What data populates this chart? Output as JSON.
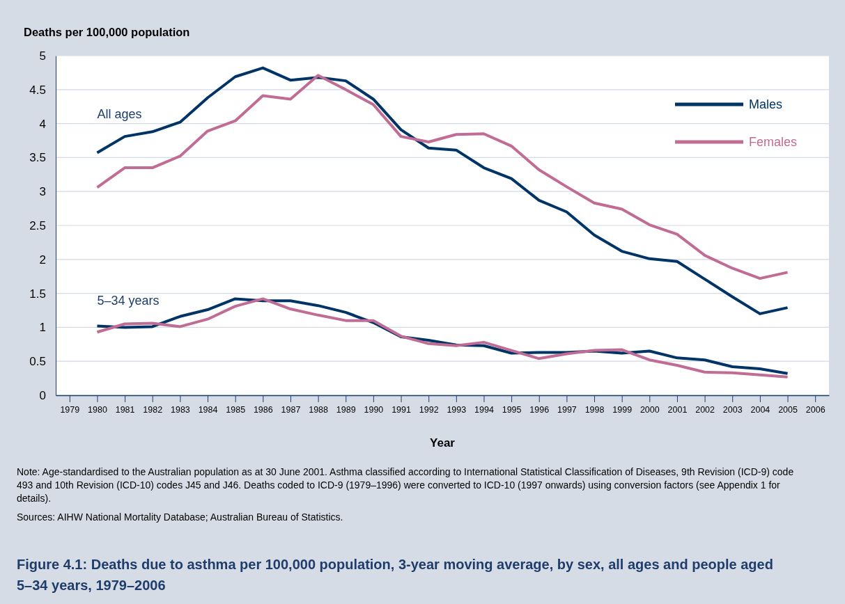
{
  "chart_data": {
    "type": "line",
    "title": "Figure 4.1: Deaths due to asthma per 100,000 population, 3-year moving average, by sex, all ages and people aged 5–34 years, 1979–2006",
    "xlabel": "Year",
    "ylabel": "Deaths per 100,000 population",
    "x": [
      1980,
      1981,
      1982,
      1983,
      1984,
      1985,
      1986,
      1987,
      1988,
      1989,
      1990,
      1991,
      1992,
      1993,
      1994,
      1995,
      1996,
      1997,
      1998,
      1999,
      2000,
      2001,
      2002,
      2003,
      2004,
      2005
    ],
    "series": [
      {
        "name": "Males",
        "color": "#003366",
        "values": [
          3.57,
          3.81,
          3.88,
          4.02,
          4.38,
          4.69,
          4.82,
          4.64,
          4.68,
          4.63,
          4.36,
          3.91,
          3.64,
          3.61,
          3.35,
          3.19,
          2.87,
          2.7,
          2.36,
          2.12,
          2.01,
          1.97,
          1.71,
          1.45,
          1.2,
          1.29
        ]
      },
      {
        "name": "Females",
        "color": "#c06c94",
        "values": [
          3.06,
          3.35,
          3.35,
          3.52,
          3.89,
          4.04,
          4.41,
          4.36,
          4.71,
          4.5,
          4.28,
          3.81,
          3.73,
          3.84,
          3.85,
          3.67,
          3.32,
          3.07,
          2.83,
          2.74,
          2.51,
          2.37,
          2.06,
          1.87,
          1.72,
          1.81
        ]
      },
      {
        "color": "#003366",
        "values": [
          1.02,
          1.0,
          1.01,
          1.16,
          1.26,
          1.42,
          1.39,
          1.39,
          1.32,
          1.22,
          1.07,
          0.86,
          0.81,
          0.74,
          0.73,
          0.62,
          0.63,
          0.63,
          0.65,
          0.62,
          0.65,
          0.55,
          0.52,
          0.42,
          0.39,
          0.32
        ]
      },
      {
        "color": "#c06c94",
        "values": [
          0.93,
          1.05,
          1.06,
          1.01,
          1.12,
          1.31,
          1.42,
          1.27,
          1.18,
          1.1,
          1.1,
          0.87,
          0.76,
          0.73,
          0.78,
          0.66,
          0.54,
          0.61,
          0.66,
          0.67,
          0.52,
          0.44,
          0.34,
          0.33,
          0.3,
          0.27
        ]
      }
    ],
    "xlim": [
      1978.5,
      2006.5
    ],
    "xticks": [
      1979,
      1980,
      1981,
      1982,
      1983,
      1984,
      1985,
      1986,
      1987,
      1988,
      1989,
      1990,
      1991,
      1992,
      1993,
      1994,
      1995,
      1996,
      1997,
      1998,
      1999,
      2000,
      2001,
      2002,
      2003,
      2004,
      2005,
      2006
    ],
    "ylim": [
      0,
      5
    ],
    "yticks": [
      0,
      0.5,
      1,
      1.5,
      2,
      2.5,
      3,
      3.5,
      4,
      4.5,
      5
    ],
    "grid": "y",
    "legend": "top right",
    "marker": "none",
    "line_style": "solid",
    "annotations": [
      "All ages",
      "5–34 years",
      "Note: Age-standardised to the Australian population as at 30 June 2001. Asthma classified according to International Statistical Classification of Diseases, 9th Revision (ICD-9) code 493 and 10th Revision (ICD-10) codes J45 and J46. Deaths coded to ICD-9 (1979–1996) were converted to ICD-10 (1997 onwards) using conversion factors (see Appendix 1 for details).",
      "Sources: AIHW National Mortality Database; Australian Bureau of Statistics."
    ]
  }
}
